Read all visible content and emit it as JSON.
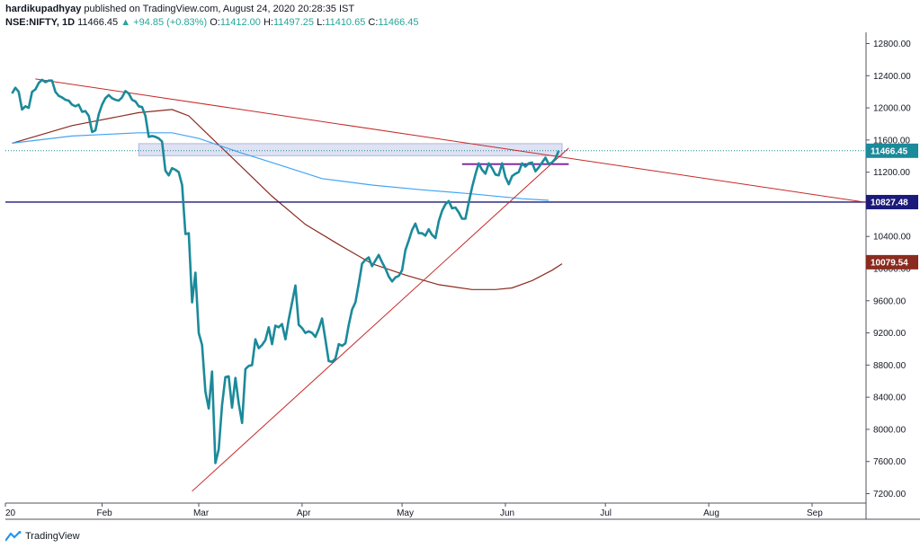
{
  "header": {
    "author": "hardikupadhyay",
    "published": "published on TradingView.com, August 24, 2020 20:28:35 IST",
    "symbol": "NSE:NIFTY, 1D",
    "last": "11466.45",
    "arrow": "▲",
    "change": "+94.85 (+0.83%)",
    "o_label": "O:",
    "o_value": "11412.00",
    "h_label": "H:",
    "h_value": "11497.25",
    "l_label": "L:",
    "l_value": "11410.65",
    "c_label": "C:",
    "c_value": "11466.45"
  },
  "footer": {
    "brand": "TradingView",
    "logo_icon": "tradingview-logo-icon"
  },
  "colors": {
    "price": "#1b8a9a",
    "trend_red": "#c62828",
    "ma_brown": "#8b2b1f",
    "ma_blue": "#42a5f5",
    "support_navy": "#1a1a7a",
    "resistance_purple": "#7b1fa2",
    "zone_fill": "#c5cae9",
    "last_badge": "#1b8a9a",
    "navy_badge": "#1a1a7a",
    "brown_badge": "#8b2b1f"
  },
  "chart_data": {
    "type": "line",
    "ylim": [
      7200,
      12900
    ],
    "y_ticks": [
      7200,
      7600,
      8000,
      8400,
      8800,
      9200,
      9600,
      10000,
      10400,
      10800,
      11200,
      11600,
      12000,
      12400,
      12800
    ],
    "y_tick_labels": [
      "7200.00",
      "7600.00",
      "8000.00",
      "8400.00",
      "8800.00",
      "9200.00",
      "9600.00",
      "10000.00",
      "10400.00",
      "10800.00",
      "11200.00",
      "11600.00",
      "12000.00",
      "12400.00",
      "12800.00"
    ],
    "x_ticks": [
      {
        "label": "20",
        "day": 0
      },
      {
        "label": "Feb",
        "day": 29
      },
      {
        "label": "Mar",
        "day": 58
      },
      {
        "label": "Apr",
        "day": 89
      },
      {
        "label": "May",
        "day": 119
      },
      {
        "label": "Jun",
        "day": 150
      },
      {
        "label": "Jul",
        "day": 180
      },
      {
        "label": "Aug",
        "day": 211
      },
      {
        "label": "Sep",
        "day": 242
      }
    ],
    "x_range_days": [
      2,
      242
    ],
    "price_series": {
      "name": "NIFTY",
      "points": [
        [
          2,
          12180
        ],
        [
          3,
          12250
        ],
        [
          4,
          12200
        ],
        [
          5,
          11980
        ],
        [
          6,
          12020
        ],
        [
          7,
          12000
        ],
        [
          8,
          12200
        ],
        [
          9,
          12230
        ],
        [
          10,
          12310
        ],
        [
          11,
          12350
        ],
        [
          12,
          12320
        ],
        [
          13,
          12340
        ],
        [
          14,
          12340
        ],
        [
          15,
          12200
        ],
        [
          16,
          12150
        ],
        [
          17,
          12130
        ],
        [
          18,
          12100
        ],
        [
          19,
          12090
        ],
        [
          20,
          12040
        ],
        [
          21,
          12020
        ],
        [
          22,
          12040
        ],
        [
          23,
          11950
        ],
        [
          24,
          11960
        ],
        [
          25,
          11900
        ],
        [
          26,
          11700
        ],
        [
          27,
          11720
        ],
        [
          28,
          11920
        ],
        [
          29,
          12040
        ],
        [
          30,
          12120
        ],
        [
          31,
          12160
        ],
        [
          32,
          12120
        ],
        [
          33,
          12100
        ],
        [
          34,
          12090
        ],
        [
          35,
          12130
        ],
        [
          36,
          12210
        ],
        [
          37,
          12180
        ],
        [
          38,
          12100
        ],
        [
          39,
          12080
        ],
        [
          40,
          12020
        ],
        [
          41,
          12010
        ],
        [
          42,
          11900
        ],
        [
          43,
          11640
        ],
        [
          44,
          11650
        ],
        [
          45,
          11640
        ],
        [
          46,
          11620
        ],
        [
          47,
          11580
        ],
        [
          48,
          11220
        ],
        [
          49,
          11160
        ],
        [
          50,
          11250
        ],
        [
          51,
          11230
        ],
        [
          52,
          11200
        ],
        [
          53,
          11040
        ],
        [
          54,
          10430
        ],
        [
          55,
          10440
        ],
        [
          56,
          9580
        ],
        [
          57,
          9950
        ],
        [
          58,
          9200
        ],
        [
          59,
          9050
        ],
        [
          60,
          8470
        ],
        [
          61,
          8260
        ],
        [
          62,
          8720
        ],
        [
          63,
          7580
        ],
        [
          64,
          7750
        ],
        [
          65,
          8300
        ],
        [
          66,
          8650
        ],
        [
          67,
          8660
        ],
        [
          68,
          8270
        ],
        [
          69,
          8640
        ],
        [
          70,
          8320
        ],
        [
          71,
          8080
        ],
        [
          72,
          8750
        ],
        [
          73,
          8790
        ],
        [
          74,
          8800
        ],
        [
          75,
          9120
        ],
        [
          76,
          9010
        ],
        [
          77,
          9050
        ],
        [
          78,
          9110
        ],
        [
          79,
          9270
        ],
        [
          80,
          9060
        ],
        [
          81,
          9290
        ],
        [
          82,
          9270
        ],
        [
          83,
          9310
        ],
        [
          84,
          9120
        ],
        [
          85,
          9370
        ],
        [
          86,
          9580
        ],
        [
          87,
          9790
        ],
        [
          88,
          9300
        ],
        [
          89,
          9260
        ],
        [
          90,
          9200
        ],
        [
          91,
          9220
        ],
        [
          92,
          9200
        ],
        [
          93,
          9150
        ],
        [
          94,
          9250
        ],
        [
          95,
          9380
        ],
        [
          96,
          9120
        ],
        [
          97,
          8850
        ],
        [
          98,
          8840
        ],
        [
          99,
          8880
        ],
        [
          100,
          9060
        ],
        [
          101,
          9040
        ],
        [
          102,
          9070
        ],
        [
          103,
          9300
        ],
        [
          104,
          9490
        ],
        [
          105,
          9580
        ],
        [
          106,
          9810
        ],
        [
          107,
          10060
        ],
        [
          108,
          10110
        ],
        [
          109,
          10140
        ],
        [
          110,
          10030
        ],
        [
          111,
          10100
        ],
        [
          112,
          10170
        ],
        [
          113,
          10080
        ],
        [
          114,
          10000
        ],
        [
          115,
          9900
        ],
        [
          116,
          9840
        ],
        [
          117,
          9890
        ],
        [
          118,
          9910
        ],
        [
          119,
          9980
        ],
        [
          120,
          10230
        ],
        [
          121,
          10350
        ],
        [
          122,
          10480
        ],
        [
          123,
          10560
        ],
        [
          124,
          10440
        ],
        [
          125,
          10440
        ],
        [
          126,
          10410
        ],
        [
          127,
          10490
        ],
        [
          128,
          10420
        ],
        [
          129,
          10380
        ],
        [
          130,
          10590
        ],
        [
          131,
          10720
        ],
        [
          132,
          10800
        ],
        [
          133,
          10840
        ],
        [
          134,
          10750
        ],
        [
          135,
          10760
        ],
        [
          136,
          10700
        ],
        [
          137,
          10620
        ],
        [
          138,
          10620
        ],
        [
          139,
          10820
        ],
        [
          140,
          11010
        ],
        [
          141,
          11170
        ],
        [
          142,
          11310
        ],
        [
          143,
          11230
        ],
        [
          144,
          11180
        ],
        [
          145,
          11310
        ],
        [
          146,
          11250
        ],
        [
          147,
          11170
        ],
        [
          148,
          11160
        ],
        [
          149,
          11310
        ],
        [
          150,
          11140
        ],
        [
          151,
          11050
        ],
        [
          152,
          11150
        ],
        [
          153,
          11180
        ],
        [
          154,
          11200
        ],
        [
          155,
          11310
        ],
        [
          156,
          11270
        ],
        [
          157,
          11310
        ],
        [
          158,
          11320
        ],
        [
          159,
          11210
        ],
        [
          160,
          11260
        ],
        [
          161,
          11320
        ],
        [
          162,
          11380
        ],
        [
          163,
          11300
        ],
        [
          164,
          11320
        ],
        [
          165,
          11370
        ],
        [
          166,
          11466
        ]
      ]
    },
    "series": [
      {
        "name": "",
        "kind": "ma_brown",
        "points": [
          [
            2,
            11560
          ],
          [
            20,
            11780
          ],
          [
            40,
            11940
          ],
          [
            50,
            11980
          ],
          [
            55,
            11900
          ],
          [
            60,
            11700
          ],
          [
            70,
            11300
          ],
          [
            80,
            10900
          ],
          [
            90,
            10550
          ],
          [
            100,
            10300
          ],
          [
            110,
            10060
          ],
          [
            120,
            9920
          ],
          [
            130,
            9800
          ],
          [
            140,
            9740
          ],
          [
            147,
            9740
          ],
          [
            152,
            9760
          ],
          [
            158,
            9850
          ],
          [
            164,
            9980
          ],
          [
            167,
            10060
          ]
        ]
      },
      {
        "name": "",
        "kind": "ma_blue",
        "points": [
          [
            2,
            11560
          ],
          [
            20,
            11650
          ],
          [
            40,
            11690
          ],
          [
            50,
            11690
          ],
          [
            58,
            11620
          ],
          [
            70,
            11450
          ],
          [
            80,
            11320
          ],
          [
            95,
            11120
          ],
          [
            110,
            11040
          ],
          [
            125,
            10980
          ],
          [
            140,
            10930
          ],
          [
            155,
            10870
          ],
          [
            163,
            10850
          ]
        ]
      }
    ],
    "trendlines": [
      {
        "kind": "trend_red",
        "from": [
          9,
          12360
        ],
        "to": [
          181,
          11300
        ]
      },
      {
        "kind": "trend_red",
        "from": [
          56,
          7230
        ],
        "to": [
          169,
          11500
        ]
      }
    ],
    "hlines": [
      {
        "kind": "support_navy",
        "y": 10827.48,
        "from_day": 0,
        "to_day": 242
      },
      {
        "kind": "resistance_purple",
        "y": 11300,
        "from_day": 137,
        "to_day": 169
      }
    ],
    "zone": {
      "y_from": 11405,
      "y_to": 11555,
      "from_day": 40,
      "to_day": 167
    },
    "last_price_line": {
      "y": 11466.45
    },
    "price_badges": [
      {
        "label": "11466.45",
        "y": 11466.45,
        "kind": "last_badge"
      },
      {
        "label": "10827.48",
        "y": 10827.48,
        "kind": "navy_badge"
      },
      {
        "label": "10079.54",
        "y": 10079.54,
        "kind": "brown_badge"
      }
    ]
  }
}
